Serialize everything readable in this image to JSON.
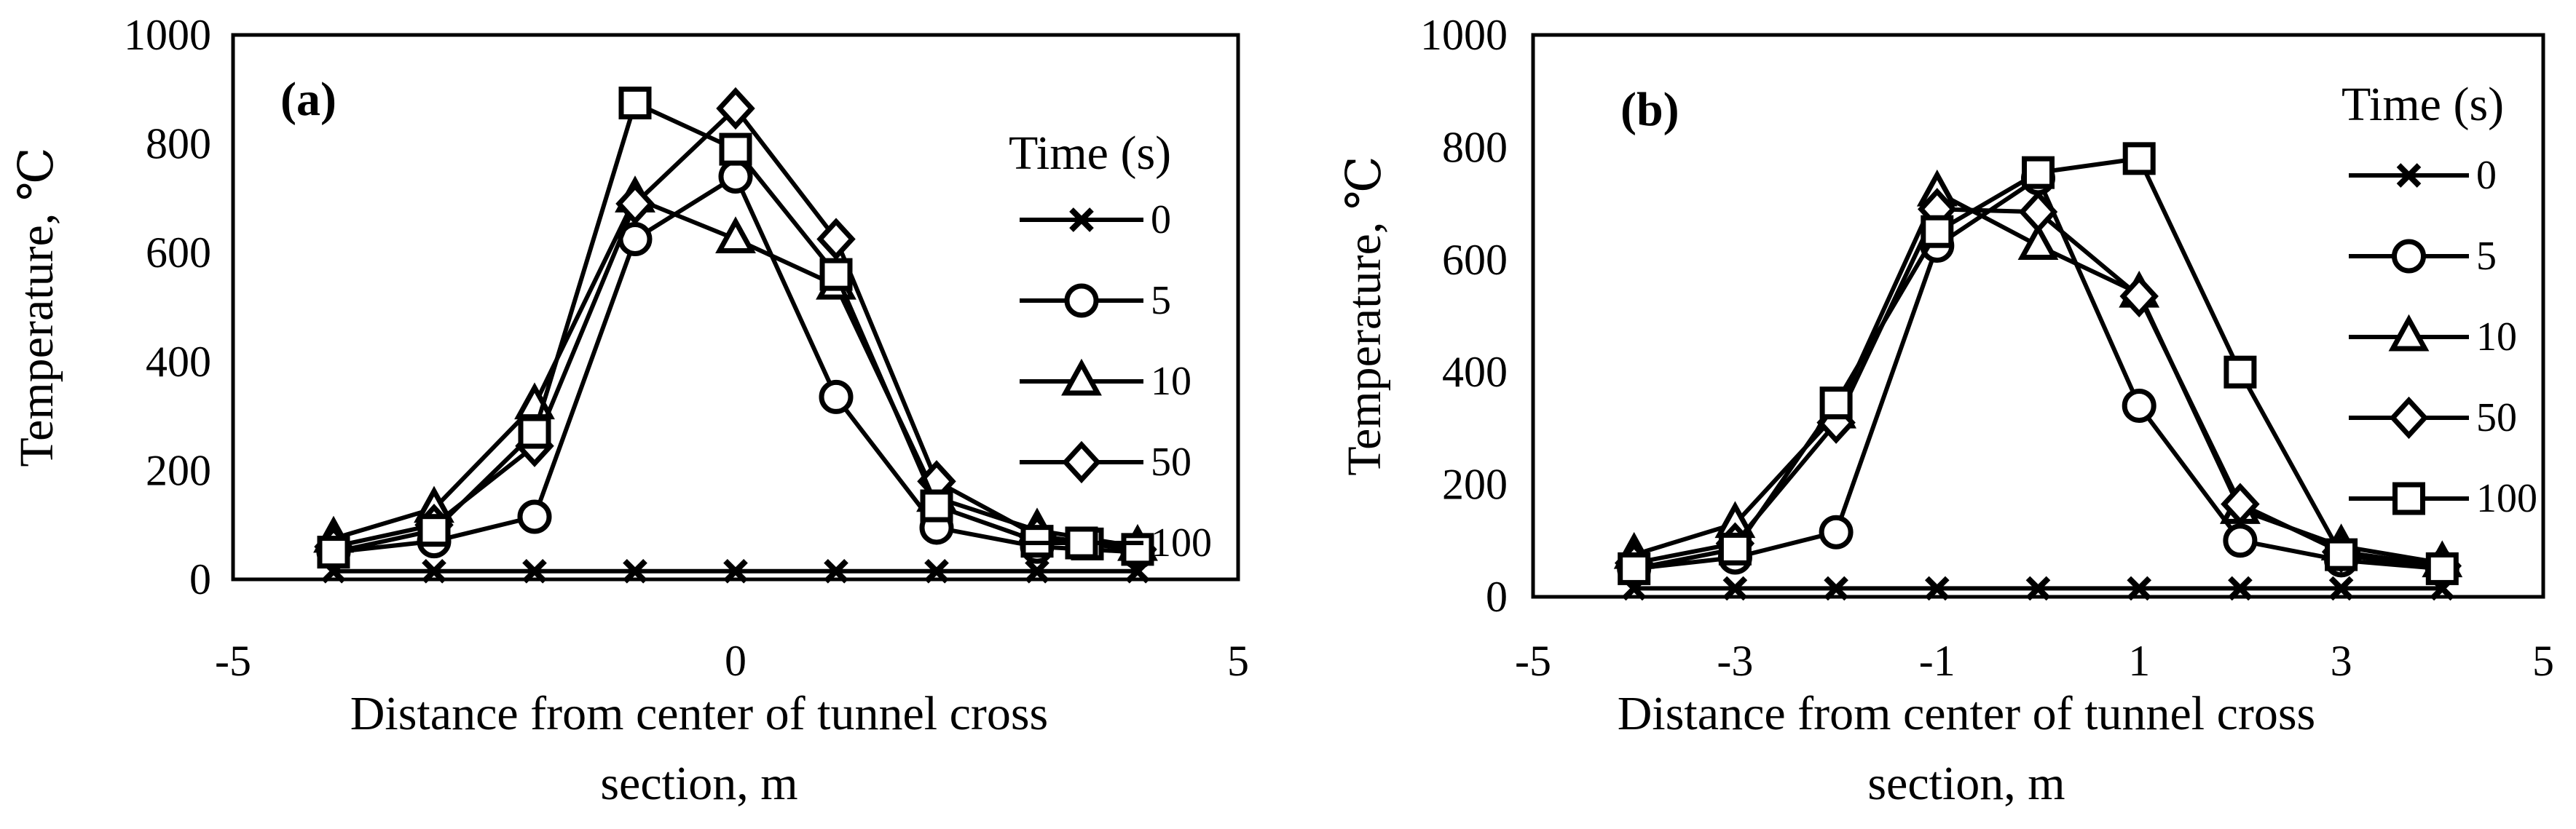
{
  "chart_data": [
    {
      "id": "a",
      "type": "line",
      "panel_label": "(a)",
      "xlabel_lines": [
        "Distance from center of tunnel cross",
        "section, m"
      ],
      "ylabel": "Temperature, ℃",
      "xlim": [
        -5,
        5
      ],
      "ylim": [
        0,
        1000
      ],
      "xticks": [
        -5,
        0,
        5
      ],
      "yticks": [
        0,
        200,
        400,
        600,
        800,
        1000
      ],
      "legend_title": "Time (s)",
      "legend_placement": "top-right",
      "x": [
        -4,
        -3,
        -2,
        -1,
        0,
        1,
        2,
        3,
        4
      ],
      "series": [
        {
          "name": "0",
          "marker": "x",
          "x": [
            -4,
            -3,
            -2,
            -1,
            0,
            1,
            2,
            3,
            4
          ],
          "values": [
            15,
            15,
            15,
            15,
            15,
            15,
            15,
            15,
            15
          ]
        },
        {
          "name": "5",
          "marker": "circle",
          "x": [
            -4,
            -3,
            -2,
            -1,
            0,
            1,
            2,
            3,
            4
          ],
          "values": [
            50,
            70,
            115,
            625,
            740,
            335,
            95,
            60,
            50
          ]
        },
        {
          "name": "10",
          "marker": "triangle",
          "x": [
            -4,
            -3,
            -2,
            -1,
            0,
            1,
            2,
            3,
            4
          ],
          "values": [
            75,
            130,
            320,
            700,
            625,
            540,
            150,
            90,
            60
          ]
        },
        {
          "name": "50",
          "marker": "diamond",
          "x": [
            -4,
            -3,
            -2,
            -1,
            0,
            1,
            2,
            3,
            4
          ],
          "values": [
            60,
            100,
            245,
            690,
            865,
            625,
            180,
            80,
            55
          ]
        },
        {
          "name": "100",
          "marker": "square",
          "x": [
            -4,
            -3,
            -2,
            -1,
            0,
            1,
            2,
            3,
            3.5,
            4
          ],
          "values": [
            50,
            90,
            270,
            875,
            790,
            560,
            135,
            70,
            65,
            55
          ]
        }
      ]
    },
    {
      "id": "b",
      "type": "line",
      "panel_label": "(b)",
      "xlabel_lines": [
        "Distance from center of tunnel cross",
        "section, m"
      ],
      "ylabel": "Temperature, ℃",
      "xlim": [
        -5,
        5
      ],
      "ylim": [
        0,
        1000
      ],
      "xticks": [
        -5,
        -3,
        -1,
        1,
        3,
        5
      ],
      "yticks": [
        0,
        200,
        400,
        600,
        800,
        1000
      ],
      "legend_title": "Time (s)",
      "legend_placement": "top-right",
      "x": [
        -4,
        -3,
        -2,
        -1,
        0,
        1,
        2,
        3,
        4
      ],
      "series": [
        {
          "name": "0",
          "marker": "x",
          "x": [
            -4,
            -3,
            -2,
            -1,
            0,
            1,
            2,
            3,
            4
          ],
          "values": [
            15,
            15,
            15,
            15,
            15,
            15,
            15,
            15,
            15
          ]
        },
        {
          "name": "5",
          "marker": "circle",
          "x": [
            -4,
            -3,
            -2,
            -1,
            0,
            1,
            2,
            3,
            4
          ],
          "values": [
            50,
            70,
            115,
            625,
            745,
            340,
            100,
            65,
            50
          ]
        },
        {
          "name": "10",
          "marker": "triangle",
          "x": [
            -4,
            -3,
            -2,
            -1,
            0,
            1,
            2,
            3,
            4
          ],
          "values": [
            75,
            130,
            325,
            720,
            625,
            540,
            155,
            90,
            60
          ]
        },
        {
          "name": "50",
          "marker": "diamond",
          "x": [
            -4,
            -3,
            -2,
            -1,
            0,
            1,
            2,
            3,
            4
          ],
          "values": [
            60,
            95,
            310,
            690,
            685,
            535,
            165,
            80,
            55
          ]
        },
        {
          "name": "100",
          "marker": "square",
          "x": [
            -4,
            -3,
            -2,
            -1,
            0,
            1,
            2,
            3,
            4
          ],
          "values": [
            50,
            85,
            345,
            650,
            755,
            780,
            400,
            75,
            50
          ]
        }
      ]
    }
  ]
}
